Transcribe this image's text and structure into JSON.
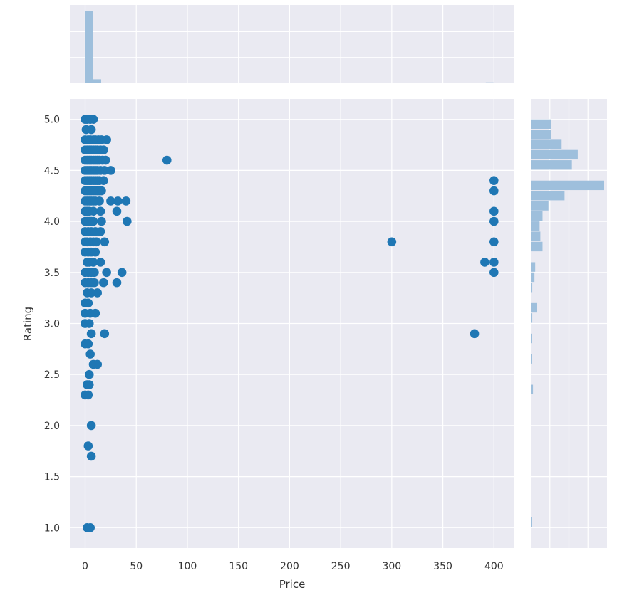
{
  "chart_data": {
    "type": "scatter",
    "title": "",
    "xlabel": "Price",
    "ylabel": "Rating",
    "xlim": [
      -15,
      420
    ],
    "ylim": [
      0.8,
      5.2
    ],
    "xticks": [
      0,
      50,
      100,
      150,
      200,
      250,
      300,
      350,
      400
    ],
    "yticks": [
      1.0,
      1.5,
      2.0,
      2.5,
      3.0,
      3.5,
      4.0,
      4.5,
      5.0
    ],
    "x_tick_labels": [
      "0",
      "50",
      "100",
      "150",
      "200",
      "250",
      "300",
      "350",
      "400"
    ],
    "y_tick_labels": [
      "1.0",
      "1.5",
      "2.0",
      "2.5",
      "3.0",
      "3.5",
      "4.0",
      "4.5",
      "5.0"
    ],
    "grid": true,
    "colors": {
      "points": "#1f77b4",
      "hist": "#9ebfdc",
      "panel": "#eaeaf2",
      "grid": "#ffffff"
    },
    "points": [
      [
        0,
        5.0
      ],
      [
        2,
        5.0
      ],
      [
        5,
        5.0
      ],
      [
        8,
        5.0
      ],
      [
        1,
        4.9
      ],
      [
        6,
        4.9
      ],
      [
        0,
        4.8
      ],
      [
        3,
        4.8
      ],
      [
        5,
        4.8
      ],
      [
        8,
        4.8
      ],
      [
        10,
        4.8
      ],
      [
        13,
        4.8
      ],
      [
        16,
        4.8
      ],
      [
        21,
        4.8
      ],
      [
        0,
        4.7
      ],
      [
        2,
        4.7
      ],
      [
        4,
        4.7
      ],
      [
        6,
        4.7
      ],
      [
        8,
        4.7
      ],
      [
        10,
        4.7
      ],
      [
        12,
        4.7
      ],
      [
        15,
        4.7
      ],
      [
        18,
        4.7
      ],
      [
        0,
        4.6
      ],
      [
        2,
        4.6
      ],
      [
        4,
        4.6
      ],
      [
        6,
        4.6
      ],
      [
        8,
        4.6
      ],
      [
        10,
        4.6
      ],
      [
        12,
        4.6
      ],
      [
        14,
        4.6
      ],
      [
        17,
        4.6
      ],
      [
        20,
        4.6
      ],
      [
        0,
        4.5
      ],
      [
        2,
        4.5
      ],
      [
        4,
        4.5
      ],
      [
        6,
        4.5
      ],
      [
        8,
        4.5
      ],
      [
        10,
        4.5
      ],
      [
        12,
        4.5
      ],
      [
        15,
        4.5
      ],
      [
        19,
        4.5
      ],
      [
        25,
        4.5
      ],
      [
        0,
        4.4
      ],
      [
        2,
        4.4
      ],
      [
        4,
        4.4
      ],
      [
        6,
        4.4
      ],
      [
        8,
        4.4
      ],
      [
        10,
        4.4
      ],
      [
        12,
        4.4
      ],
      [
        14,
        4.4
      ],
      [
        18,
        4.4
      ],
      [
        0,
        4.3
      ],
      [
        2,
        4.3
      ],
      [
        4,
        4.3
      ],
      [
        6,
        4.3
      ],
      [
        8,
        4.3
      ],
      [
        10,
        4.3
      ],
      [
        12,
        4.3
      ],
      [
        14,
        4.3
      ],
      [
        16,
        4.3
      ],
      [
        0,
        4.2
      ],
      [
        2,
        4.2
      ],
      [
        4,
        4.2
      ],
      [
        6,
        4.2
      ],
      [
        8,
        4.2
      ],
      [
        10,
        4.2
      ],
      [
        14,
        4.2
      ],
      [
        25,
        4.2
      ],
      [
        32,
        4.2
      ],
      [
        40,
        4.2
      ],
      [
        0,
        4.1
      ],
      [
        2,
        4.1
      ],
      [
        4,
        4.1
      ],
      [
        8,
        4.1
      ],
      [
        15,
        4.1
      ],
      [
        31,
        4.1
      ],
      [
        0,
        4.0
      ],
      [
        2,
        4.0
      ],
      [
        4,
        4.0
      ],
      [
        6,
        4.0
      ],
      [
        8,
        4.0
      ],
      [
        16,
        4.0
      ],
      [
        41,
        4.0
      ],
      [
        0,
        3.9
      ],
      [
        3,
        3.9
      ],
      [
        6,
        3.9
      ],
      [
        10,
        3.9
      ],
      [
        15,
        3.9
      ],
      [
        0,
        3.8
      ],
      [
        2,
        3.8
      ],
      [
        5,
        3.8
      ],
      [
        8,
        3.8
      ],
      [
        11,
        3.8
      ],
      [
        19,
        3.8
      ],
      [
        0,
        3.7
      ],
      [
        3,
        3.7
      ],
      [
        6,
        3.7
      ],
      [
        10,
        3.7
      ],
      [
        2,
        3.6
      ],
      [
        4,
        3.6
      ],
      [
        8,
        3.6
      ],
      [
        15,
        3.6
      ],
      [
        0,
        3.5
      ],
      [
        3,
        3.5
      ],
      [
        6,
        3.5
      ],
      [
        9,
        3.5
      ],
      [
        21,
        3.5
      ],
      [
        36,
        3.5
      ],
      [
        0,
        3.4
      ],
      [
        3,
        3.4
      ],
      [
        6,
        3.4
      ],
      [
        9,
        3.4
      ],
      [
        18,
        3.4
      ],
      [
        31,
        3.4
      ],
      [
        2,
        3.3
      ],
      [
        6,
        3.3
      ],
      [
        12,
        3.3
      ],
      [
        0,
        3.2
      ],
      [
        3,
        3.2
      ],
      [
        0,
        3.1
      ],
      [
        5,
        3.1
      ],
      [
        10,
        3.1
      ],
      [
        0,
        3.0
      ],
      [
        4,
        3.0
      ],
      [
        6,
        2.9
      ],
      [
        19,
        2.9
      ],
      [
        0,
        2.8
      ],
      [
        3,
        2.8
      ],
      [
        5,
        2.7
      ],
      [
        8,
        2.6
      ],
      [
        12,
        2.6
      ],
      [
        4,
        2.5
      ],
      [
        2,
        2.4
      ],
      [
        4,
        2.4
      ],
      [
        0,
        2.3
      ],
      [
        3,
        2.3
      ],
      [
        6,
        2.0
      ],
      [
        3,
        1.8
      ],
      [
        6,
        1.7
      ],
      [
        2,
        1.0
      ],
      [
        5,
        1.0
      ],
      [
        80,
        4.6
      ],
      [
        300,
        3.8
      ],
      [
        381,
        2.9
      ],
      [
        391,
        3.6
      ],
      [
        400,
        4.4
      ],
      [
        400,
        4.3
      ],
      [
        400,
        4.1
      ],
      [
        400,
        4.0
      ],
      [
        400,
        3.8
      ],
      [
        400,
        3.6
      ],
      [
        400,
        3.5
      ]
    ],
    "price_hist": {
      "bin_edges_start": 0,
      "bin_width": 8,
      "counts": [
        1000,
        55,
        5,
        4,
        2,
        1,
        1,
        1,
        1,
        0,
        1,
        0,
        0,
        0,
        0,
        0,
        0,
        0,
        0,
        0,
        0,
        0,
        0,
        0,
        0,
        0,
        0,
        0,
        0,
        0,
        0,
        0,
        0,
        0,
        0,
        0,
        0,
        0,
        0,
        0,
        0,
        0,
        0,
        0,
        0,
        0,
        0,
        0,
        0,
        12
      ]
    },
    "rating_hist": {
      "bins": [
        {
          "lo": 4.9,
          "hi": 5.0,
          "count": 28
        },
        {
          "lo": 4.8,
          "hi": 4.9,
          "count": 28
        },
        {
          "lo": 4.7,
          "hi": 4.8,
          "count": 42
        },
        {
          "lo": 4.6,
          "hi": 4.7,
          "count": 64
        },
        {
          "lo": 4.5,
          "hi": 4.6,
          "count": 56
        },
        {
          "lo": 4.3,
          "hi": 4.4,
          "count": 100
        },
        {
          "lo": 4.2,
          "hi": 4.3,
          "count": 46
        },
        {
          "lo": 4.1,
          "hi": 4.2,
          "count": 24
        },
        {
          "lo": 4.0,
          "hi": 4.1,
          "count": 16
        },
        {
          "lo": 3.9,
          "hi": 4.0,
          "count": 12
        },
        {
          "lo": 3.8,
          "hi": 3.9,
          "count": 13
        },
        {
          "lo": 3.7,
          "hi": 3.8,
          "count": 16
        },
        {
          "lo": 3.5,
          "hi": 3.6,
          "count": 6
        },
        {
          "lo": 3.4,
          "hi": 3.5,
          "count": 5
        },
        {
          "lo": 3.3,
          "hi": 3.4,
          "count": 2
        },
        {
          "lo": 3.1,
          "hi": 3.2,
          "count": 8
        },
        {
          "lo": 3.0,
          "hi": 3.1,
          "count": 2
        },
        {
          "lo": 2.8,
          "hi": 2.9,
          "count": 1
        },
        {
          "lo": 2.6,
          "hi": 2.7,
          "count": 1
        },
        {
          "lo": 2.3,
          "hi": 2.4,
          "count": 3
        },
        {
          "lo": 1.0,
          "hi": 1.1,
          "count": 1
        }
      ]
    }
  }
}
